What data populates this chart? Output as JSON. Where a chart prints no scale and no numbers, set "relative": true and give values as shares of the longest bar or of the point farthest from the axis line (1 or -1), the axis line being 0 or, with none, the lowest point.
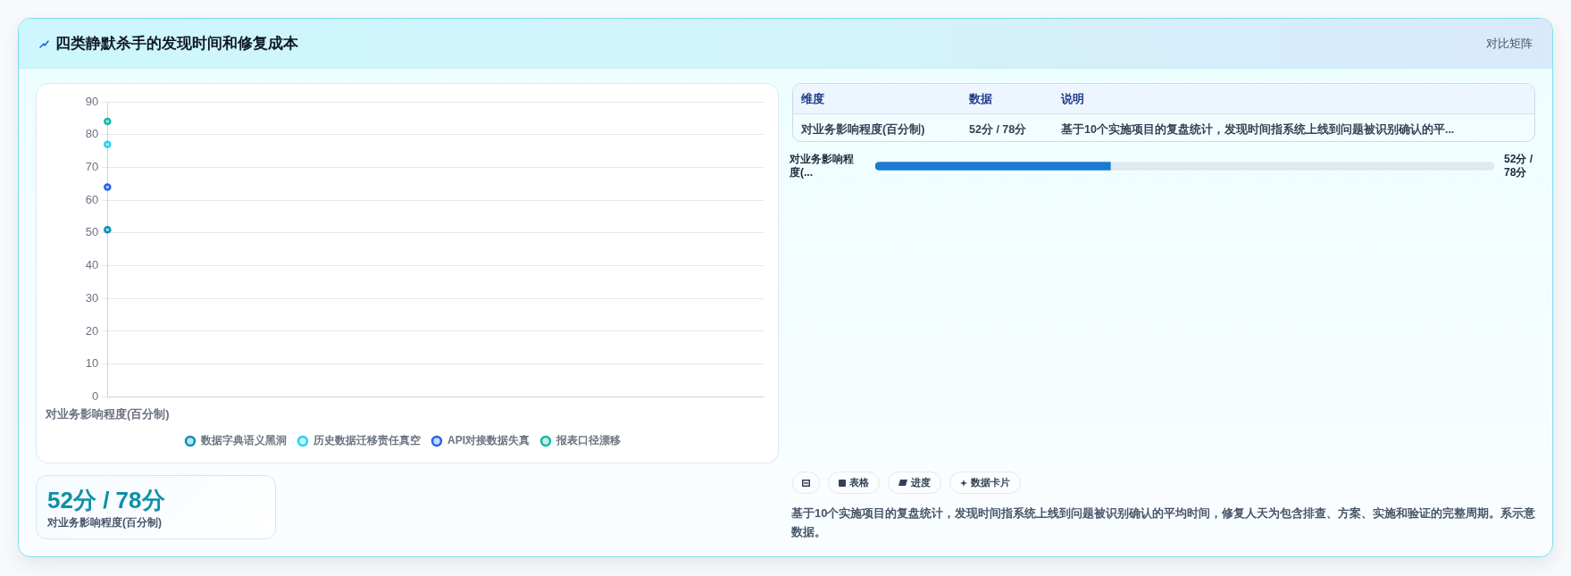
{
  "chart_data": [
    {
      "type": "other",
      "title": "四类静默杀手的发现时间和修复成本",
      "annotations": [
        "对比矩阵"
      ]
    },
    {
      "type": "line",
      "categories": [
        "对业务影响程度(百分制)"
      ],
      "series": [
        {
          "name": "数据字典语义黑洞",
          "color": "#0891b2",
          "values": [
            51
          ]
        },
        {
          "name": "历史数据迁移责任真空",
          "color": "#22d3ee",
          "values": [
            77
          ]
        },
        {
          "name": "API对接数据失真",
          "color": "#2563eb",
          "values": [
            64
          ]
        },
        {
          "name": "报表口径漂移",
          "color": "#14b8a6",
          "values": [
            84
          ]
        }
      ],
      "ylim": [
        0,
        90
      ],
      "yticks": [
        0,
        10,
        20,
        30,
        40,
        50,
        60,
        70,
        80,
        90
      ],
      "grid": "y",
      "legend": "bottom",
      "marker": "circle"
    },
    {
      "type": "other",
      "annotations": [
        "维度",
        "数据",
        "说明",
        "对业务影响程度(百分制)",
        "52分 / 78分",
        "基于10个实施项目的复盘统计，发现时间指系统上线到问题被识别确认的平..."
      ]
    },
    {
      "type": "bar",
      "orientation": "horizontal",
      "stacked": true,
      "relative": true,
      "categories": [
        "对业务影响程度(..."
      ],
      "series": [
        {
          "color": "#1b7bd0",
          "values": [
            0.38
          ]
        },
        {
          "color": "#e2e8f0",
          "values": [
            0.62
          ]
        }
      ],
      "totals": [
        "52分 / 78分"
      ]
    },
    {
      "type": "other",
      "annotations": [
        "52分 / 78分",
        "对业务影响程度(百分制)"
      ]
    },
    {
      "type": "other",
      "annotations": [
        "表格",
        "进度",
        "数据卡片",
        "基于10个实施项目的复盘统计，发现时间指系统上线到问题被识别确认的平均时间，修复人天为包含排查、方案、实施和验证的完整周期。系示意数据。"
      ]
    }
  ]
}
